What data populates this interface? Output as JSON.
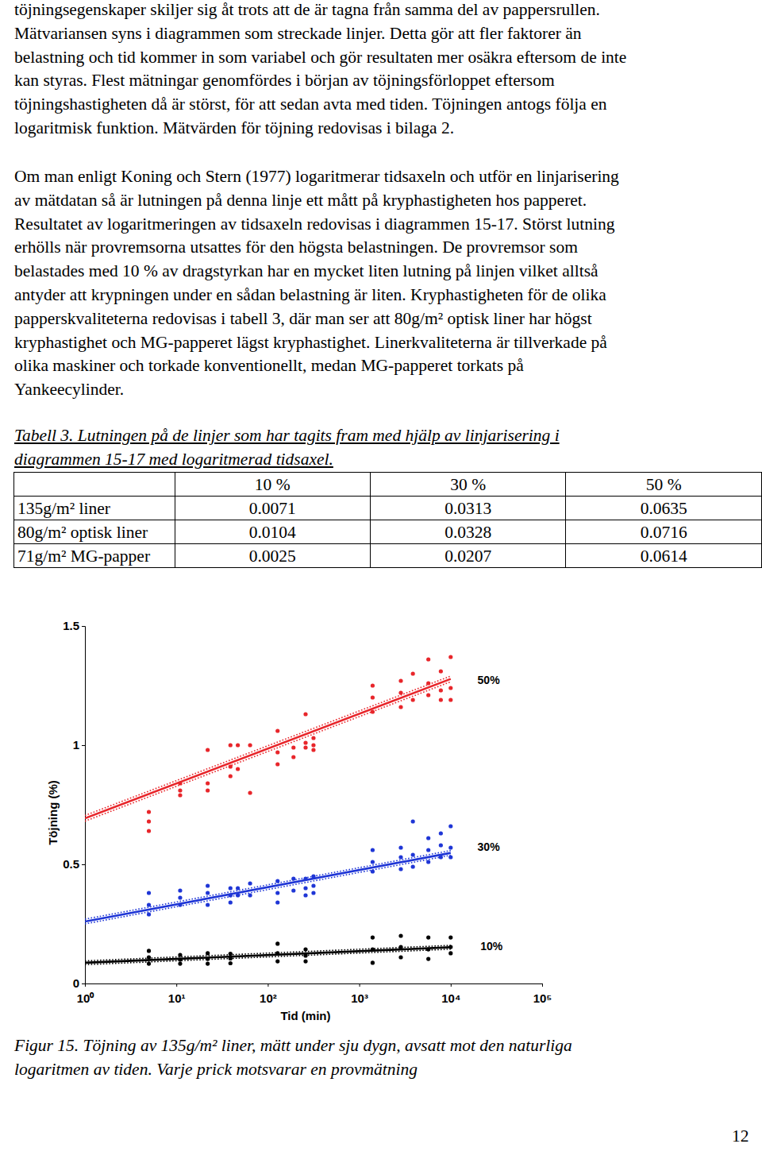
{
  "paragraphs": [
    [
      "töjningsegenskaper skiljer sig åt trots att de är tagna från samma del av pappersrullen.",
      "Mätvariansen syns i diagrammen som streckade linjer. Detta gör att fler faktorer än",
      "belastning och tid kommer in som variabel och gör resultaten mer osäkra eftersom de inte",
      "kan styras. Flest mätningar genomfördes i början av töjningsförloppet eftersom",
      "töjningshastigheten då är störst, för att sedan avta med tiden. Töjningen antogs följa en",
      "logaritmisk funktion. Mätvärden för töjning redovisas i bilaga 2."
    ],
    [
      "Om man enligt Koning och Stern (1977) logaritmerar tidsaxeln och utför en linjarisering",
      "av mätdatan så är lutningen på denna linje ett mått på kryphastigheten hos papperet.",
      "Resultatet av logaritmeringen av tidsaxeln redovisas i diagrammen 15-17. Störst lutning",
      "erhölls när provremsorna utsattes för den högsta belastningen. De provremsor som",
      "belastades med 10 % av dragstyrkan har en mycket liten lutning på linjen vilket alltså",
      "antyder att krypningen under en sådan belastning är liten. Kryphastigheten för de olika",
      "papperskvaliteterna redovisas i tabell 3, där man ser att 80g/m² optisk liner har högst",
      "kryphastighet och MG-papperet lägst kryphastighet. Linerkvaliteterna är tillverkade på",
      "olika maskiner och torkade konventionellt, medan MG-papperet torkats på",
      "Yankeecylinder."
    ]
  ],
  "table": {
    "caption": [
      "Tabell 3. Lutningen på de linjer som har tagits fram med hjälp av linjarisering i",
      "diagrammen 15-17 med logaritmerad tidsaxel."
    ],
    "header": [
      "10 %",
      "30 %",
      "50 %"
    ],
    "rows": [
      [
        "135g/m² liner",
        "0.0071",
        "0.0313",
        "0.0635"
      ],
      [
        "80g/m² optisk liner",
        "0.0104",
        "0.0328",
        "0.0716"
      ],
      [
        "71g/m² MG-papper",
        "0.0025",
        "0.0207",
        "0.0614"
      ]
    ]
  },
  "chart_data": {
    "type": "scatter",
    "x_label": "Tid (min)",
    "y_label": "Töjning (%)",
    "log": "x",
    "grid": false,
    "xlim": [
      1,
      100000
    ],
    "xticks": [
      {
        "value": 1,
        "label": "10⁰"
      },
      {
        "value": 10,
        "label": "10¹"
      },
      {
        "value": 100,
        "label": "10²"
      },
      {
        "value": 1000,
        "label": "10³"
      },
      {
        "value": 10000,
        "label": "10⁴"
      },
      {
        "value": 100000,
        "label": "10⁵"
      }
    ],
    "ylim": [
      0,
      1.5
    ],
    "yticks": [
      0,
      0.5,
      1,
      1.5
    ],
    "annotations": [
      {
        "text": "50%",
        "x": 26000,
        "y": 1.27
      },
      {
        "text": "30%",
        "x": 26000,
        "y": 0.57
      },
      {
        "text": "10%",
        "x": 28000,
        "y": 0.153
      }
    ],
    "series": [
      {
        "type": "scatter",
        "marker": "circle",
        "color": "#e8262b",
        "x": [
          5,
          5,
          5,
          11,
          11,
          11,
          22,
          22,
          22,
          39,
          39,
          39,
          47,
          47,
          64,
          64,
          128,
          128,
          128,
          191,
          191,
          259,
          259,
          259,
          316,
          316,
          316,
          1400,
          1400,
          1400,
          2850,
          2850,
          2850,
          3860,
          3860,
          5700,
          5700,
          5700,
          7800,
          7800,
          7800,
          10000,
          10000,
          10000
        ],
        "values": [
          0.72,
          0.68,
          0.64,
          0.84,
          0.81,
          0.79,
          0.98,
          0.84,
          0.81,
          1.0,
          0.91,
          0.87,
          1.0,
          0.9,
          1.0,
          0.8,
          1.06,
          0.97,
          0.92,
          0.99,
          0.95,
          1.13,
          1.01,
          0.99,
          1.03,
          1.0,
          0.98,
          1.25,
          1.2,
          1.14,
          1.27,
          1.22,
          1.16,
          1.3,
          1.19,
          1.36,
          1.26,
          1.21,
          1.31,
          1.23,
          1.19,
          1.37,
          1.24,
          1.19
        ]
      },
      {
        "type": "line",
        "line_style": "solid",
        "color": "#e8262b",
        "x": [
          1,
          10000
        ],
        "values": [
          0.693,
          1.278
        ]
      },
      {
        "type": "line",
        "line_style": "dotted",
        "color": "#e8262b",
        "x": [
          1,
          10000
        ],
        "values": [
          0.705,
          1.29
        ]
      },
      {
        "type": "line",
        "line_style": "dotted",
        "color": "#e8262b",
        "x": [
          1,
          10000
        ],
        "values": [
          0.681,
          1.266
        ]
      },
      {
        "type": "scatter",
        "marker": "circle",
        "color": "#1f36d6",
        "x": [
          5,
          5,
          5,
          11,
          11,
          11,
          22,
          22,
          22,
          39,
          39,
          39,
          47,
          47,
          64,
          64,
          128,
          128,
          128,
          191,
          191,
          259,
          259,
          259,
          316,
          316,
          316,
          1400,
          1400,
          1400,
          2850,
          2850,
          2850,
          3860,
          3860,
          3860,
          5700,
          5700,
          5700,
          7800,
          7800,
          7800,
          10000,
          10000,
          10000
        ],
        "values": [
          0.38,
          0.33,
          0.29,
          0.39,
          0.36,
          0.33,
          0.41,
          0.38,
          0.33,
          0.4,
          0.37,
          0.34,
          0.4,
          0.37,
          0.42,
          0.37,
          0.43,
          0.38,
          0.34,
          0.44,
          0.39,
          0.44,
          0.4,
          0.37,
          0.45,
          0.41,
          0.38,
          0.56,
          0.51,
          0.47,
          0.57,
          0.53,
          0.48,
          0.68,
          0.54,
          0.49,
          0.61,
          0.56,
          0.51,
          0.63,
          0.58,
          0.53,
          0.66,
          0.57,
          0.53
        ]
      },
      {
        "type": "line",
        "line_style": "solid",
        "color": "#1f36d6",
        "x": [
          1,
          10000
        ],
        "values": [
          0.26,
          0.548
        ]
      },
      {
        "type": "line",
        "line_style": "dotted",
        "color": "#1f36d6",
        "x": [
          1,
          10000
        ],
        "values": [
          0.27,
          0.558
        ]
      },
      {
        "type": "line",
        "line_style": "dotted",
        "color": "#1f36d6",
        "x": [
          1,
          10000
        ],
        "values": [
          0.25,
          0.538
        ]
      },
      {
        "type": "scatter",
        "marker": "circle",
        "color": "#000000",
        "x": [
          5,
          5,
          5,
          11,
          11,
          11,
          22,
          22,
          22,
          39,
          39,
          39,
          128,
          128,
          128,
          259,
          259,
          259,
          1400,
          1400,
          1400,
          2850,
          2850,
          2850,
          5700,
          5700,
          5700,
          10000,
          10000,
          10000
        ],
        "values": [
          0.137,
          0.11,
          0.083,
          0.12,
          0.1,
          0.083,
          0.127,
          0.103,
          0.083,
          0.125,
          0.105,
          0.085,
          0.167,
          0.127,
          0.093,
          0.143,
          0.117,
          0.093,
          0.193,
          0.143,
          0.087,
          0.2,
          0.153,
          0.11,
          0.193,
          0.143,
          0.103,
          0.193,
          0.153,
          0.127
        ]
      },
      {
        "type": "line",
        "line_style": "solid",
        "color": "#000000",
        "x": [
          1,
          10000
        ],
        "values": [
          0.087,
          0.152
        ]
      },
      {
        "type": "line",
        "line_style": "dotted",
        "color": "#000000",
        "x": [
          1,
          10000
        ],
        "values": [
          0.095,
          0.16
        ]
      },
      {
        "type": "line",
        "line_style": "dotted",
        "color": "#000000",
        "x": [
          1,
          10000
        ],
        "values": [
          0.079,
          0.144
        ]
      }
    ]
  },
  "figure_caption": [
    "Figur 15. Töjning av 135g/m² liner, mätt under sju dygn, avsatt mot den naturliga",
    "logaritmen av tiden. Varje prick motsvarar en provmätning"
  ],
  "page_number": "12"
}
